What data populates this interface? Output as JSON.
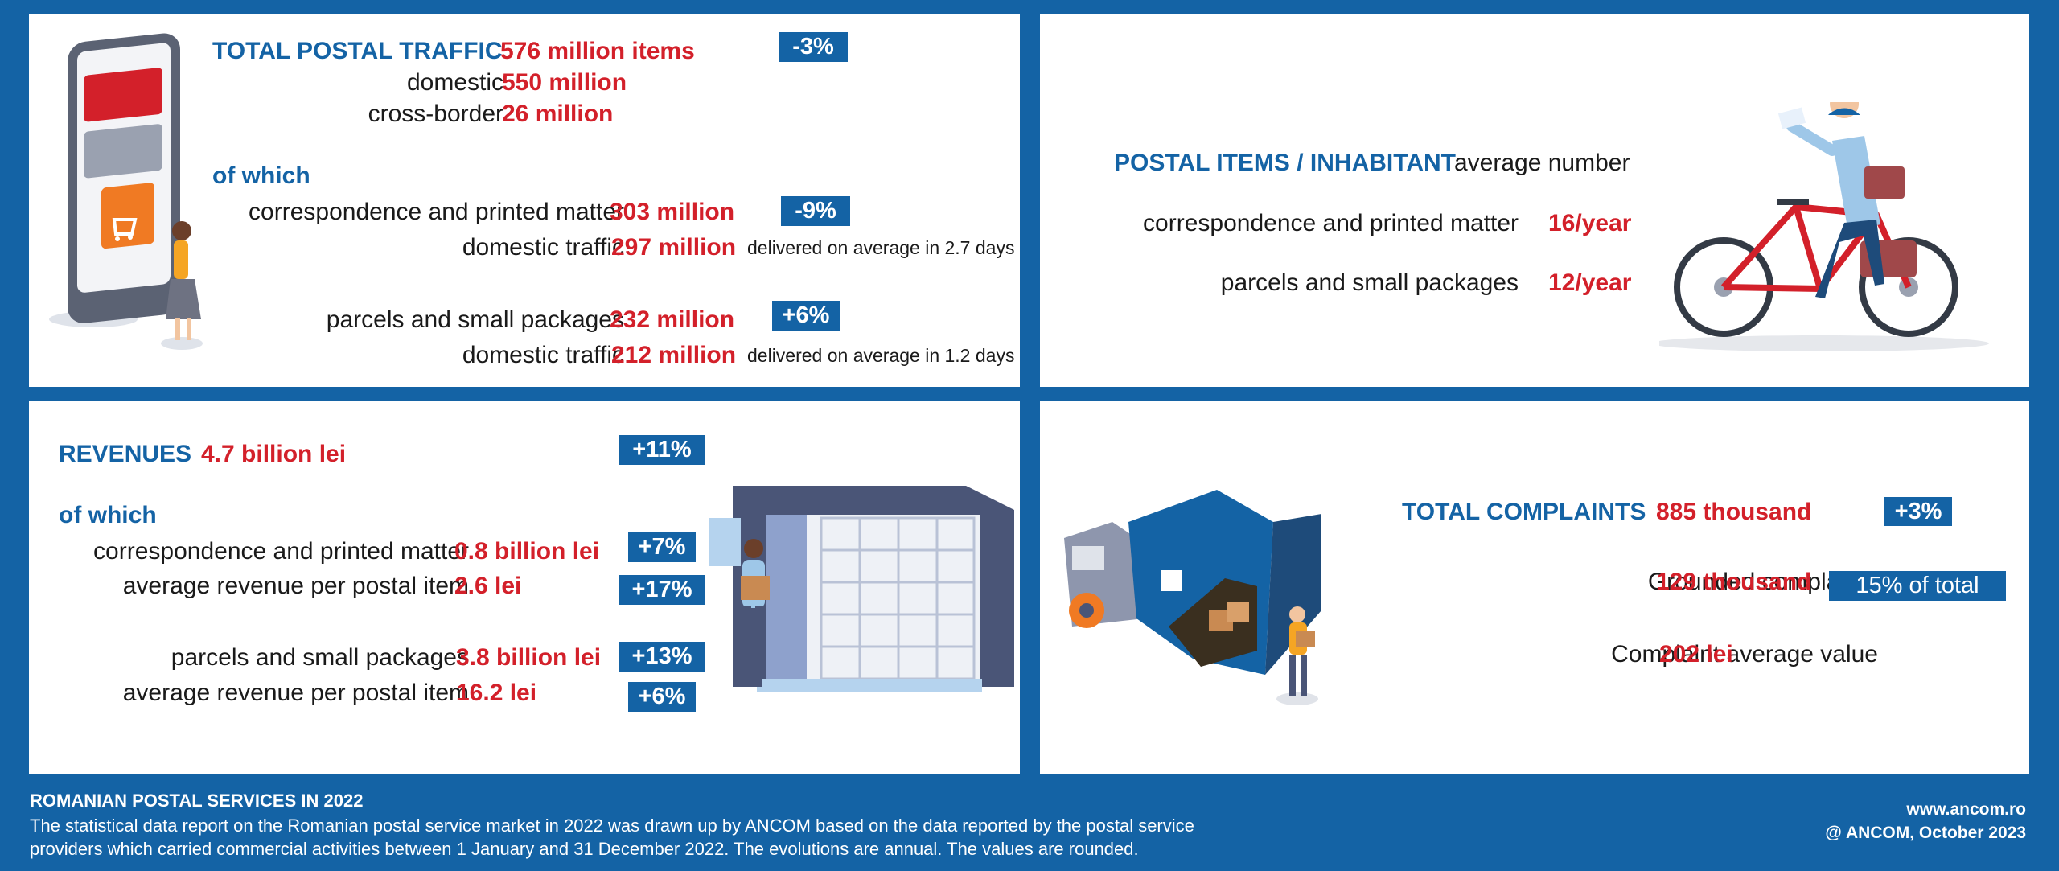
{
  "traffic": {
    "title": "TOTAL POSTAL TRAFFIC",
    "total": "576 million items",
    "change": "-3%",
    "domestic_label": "domestic",
    "domestic_value": "550 million",
    "cross_label": "cross-border",
    "cross_value": "26 million",
    "of_which": "of which",
    "corr_label": "correspondence and printed matter",
    "corr_value": "303 million",
    "corr_change": "-9%",
    "corr_dom_label": "domestic traffic",
    "corr_dom_value": "297 million",
    "corr_dom_note": "delivered on average in 2.7 days",
    "parcels_label": "parcels and small packages",
    "parcels_value": "232 million",
    "parcels_change": "+6%",
    "parcels_dom_label": "domestic traffic",
    "parcels_dom_value": "212 million",
    "parcels_dom_note": "delivered on average in 1.2 days"
  },
  "per_inhabitant": {
    "title": "POSTAL ITEMS / INHABITANT",
    "subtitle": "average number",
    "corr_label": "correspondence and printed matter",
    "corr_value": "16/year",
    "parcels_label": "parcels and small packages",
    "parcels_value": "12/year"
  },
  "revenues": {
    "title": "REVENUES",
    "total": "4.7 billion lei",
    "change": "+11%",
    "of_which": "of which",
    "corr_label": "correspondence and printed matter",
    "corr_value": "0.8 billion lei",
    "corr_change": "+7%",
    "corr_avg_label": "average revenue per postal item",
    "corr_avg_value": "2.6 lei",
    "corr_avg_change": "+17%",
    "parcels_label": "parcels and small packages",
    "parcels_value": "3.8 billion lei",
    "parcels_change": "+13%",
    "parcels_avg_label": "average revenue per postal item",
    "parcels_avg_value": "16.2 lei",
    "parcels_avg_change": "+6%"
  },
  "complaints": {
    "title": "TOTAL COMPLAINTS",
    "total": "885 thousand",
    "change": "+3%",
    "grounded_label": "Grounded complaints",
    "grounded_value": "129 thousand",
    "grounded_share": "15% of total",
    "avg_label": "Complaint average value",
    "avg_value": "202 lei"
  },
  "footer": {
    "title": "ROMANIAN POSTAL SERVICES IN 2022",
    "line1": "The statistical data report on the Romanian postal service market in 2022 was drawn up by ANCOM based on the data reported by the postal service",
    "line2": "providers which carried commercial activities between 1 January and 31 December 2022. The evolutions are annual. The values are rounded.",
    "website": "www.ancom.ro",
    "copyright": "@ ANCOM, October 2023"
  },
  "colors": {
    "blue": "#1463a5",
    "red": "#d3202a",
    "orange": "#f07a23"
  },
  "illustrations": [
    "phone-shopping-illustration",
    "cyclist-courier-illustration",
    "parcel-locker-illustration",
    "delivery-truck-illustration"
  ]
}
